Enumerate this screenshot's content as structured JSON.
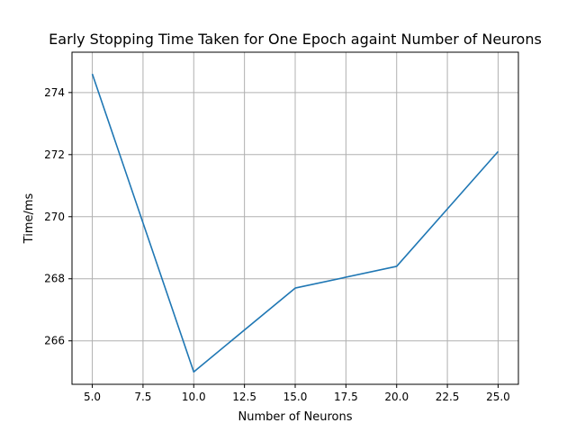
{
  "chart_data": {
    "type": "line",
    "title": "Early Stopping Time Taken for One Epoch againt Number of Neurons",
    "xlabel": "Number of Neurons",
    "ylabel": "Time/ms",
    "xlim": [
      4.0,
      26.0
    ],
    "ylim": [
      264.6,
      275.3
    ],
    "x_ticks": [
      5.0,
      7.5,
      10.0,
      12.5,
      15.0,
      17.5,
      20.0,
      22.5,
      25.0
    ],
    "x_tick_labels": [
      "5.0",
      "7.5",
      "10.0",
      "12.5",
      "15.0",
      "17.5",
      "20.0",
      "22.5",
      "25.0"
    ],
    "y_ticks": [
      266,
      268,
      270,
      272,
      274
    ],
    "y_tick_labels": [
      "266",
      "268",
      "270",
      "272",
      "274"
    ],
    "grid": true,
    "series": [
      {
        "color": "#1f77b4",
        "x": [
          5,
          10,
          15,
          20,
          25
        ],
        "y": [
          274.6,
          265.0,
          267.7,
          268.4,
          272.1
        ]
      }
    ]
  }
}
